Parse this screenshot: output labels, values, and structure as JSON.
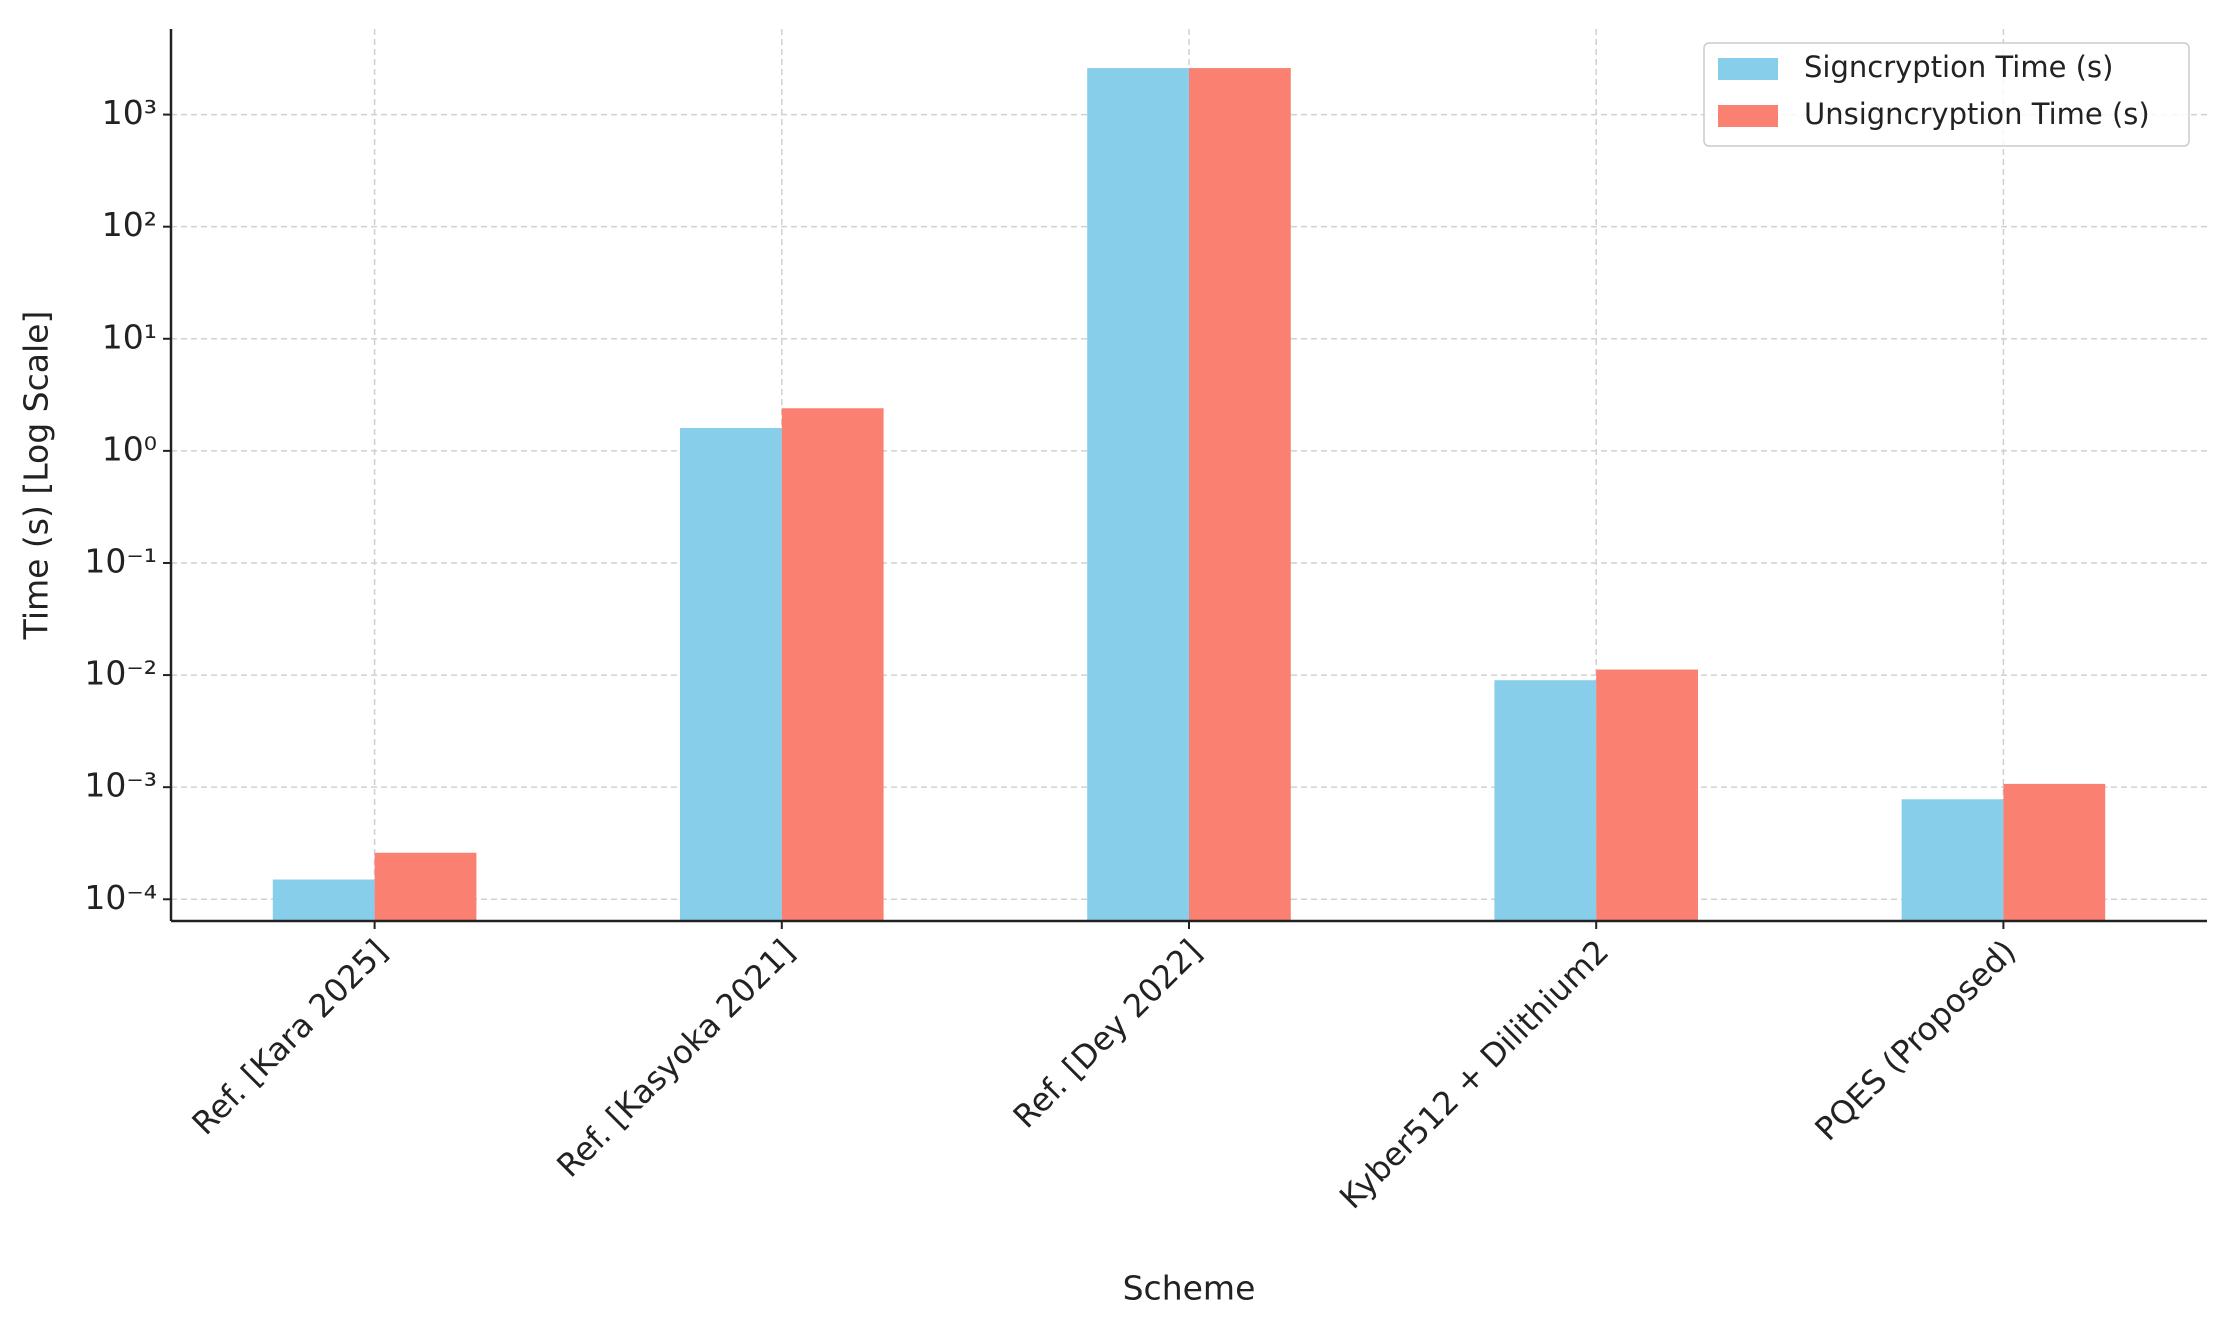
{
  "chart_data": {
    "type": "bar",
    "xlabel": "Scheme",
    "ylabel": "Time (s) [Log Scale]",
    "categories": [
      "Ref. [Kara 2025]",
      "Ref. [Kasyoka 2021]",
      "Ref. [Dey 2022]",
      "Kyber512 + Dilithium2",
      "PQES (Proposed)"
    ],
    "series": [
      {
        "name": "Signcryption Time (s)",
        "color": "#87ceeb",
        "values": [
          0.00015,
          1.6,
          2600,
          0.009,
          0.00078
        ]
      },
      {
        "name": "Unsigncryption Time (s)",
        "color": "#fa8072",
        "values": [
          0.00026,
          2.4,
          2600,
          0.0112,
          0.00107
        ]
      }
    ],
    "log_scale": true,
    "ylim": [
      6.4e-05,
      5800
    ],
    "yticks": [
      {
        "value": 0.0001,
        "label": "10⁻⁴"
      },
      {
        "value": 0.001,
        "label": "10⁻³"
      },
      {
        "value": 0.01,
        "label": "10⁻²"
      },
      {
        "value": 0.1,
        "label": "10⁻¹"
      },
      {
        "value": 1,
        "label": "10⁰"
      },
      {
        "value": 10,
        "label": "10¹"
      },
      {
        "value": 100,
        "label": "10²"
      },
      {
        "value": 1000,
        "label": "10³"
      }
    ],
    "grid": true,
    "legend": "upper right"
  }
}
